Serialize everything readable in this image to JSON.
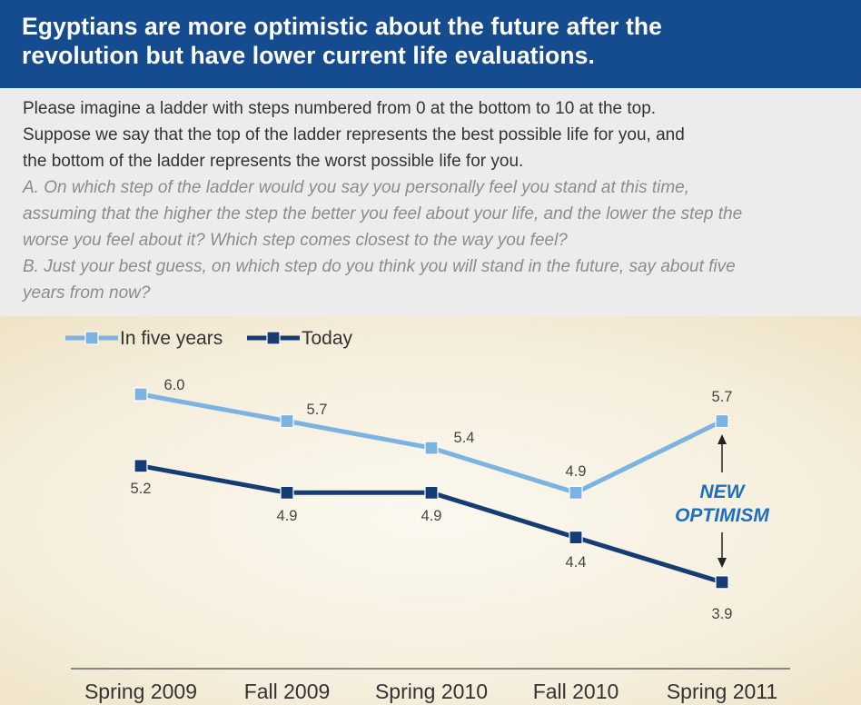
{
  "header": {
    "title_line1": "Egyptians are more optimistic about the future after the",
    "title_line2": "revolution but have lower current life evaluations."
  },
  "question": {
    "intro": [
      "Please imagine a ladder with steps numbered from 0 at the bottom to 10 at the top.",
      "Suppose we say that the top of the ladder represents the best possible life for you, and",
      "the bottom of the ladder represents the worst possible life for you."
    ],
    "part_a": [
      "A. On which step of the ladder would you say you personally feel you stand at this time,",
      "assuming that the higher the step the better you feel about your life, and the lower the step the",
      "worse you feel about it? Which step comes closest to the way you feel?"
    ],
    "part_b": [
      "B. Just your best guess, on which step do you think you will stand in the future, say about five",
      "years from now?"
    ]
  },
  "chart_data": {
    "type": "line",
    "categories": [
      "Spring 2009",
      "Fall 2009",
      "Spring 2010",
      "Fall 2010",
      "Spring 2011"
    ],
    "series": [
      {
        "name": "In five years",
        "values": [
          6.0,
          5.7,
          5.4,
          4.9,
          5.7
        ],
        "labels": [
          "6.0",
          "5.7",
          "5.4",
          "4.9",
          "5.7"
        ],
        "color": "#7db3e0"
      },
      {
        "name": "Today",
        "values": [
          5.2,
          4.9,
          4.9,
          4.4,
          3.9
        ],
        "labels": [
          "5.2",
          "4.9",
          "4.9",
          "4.4",
          "3.9"
        ],
        "color": "#163d73"
      }
    ],
    "legend_position": "top-left",
    "annotation": {
      "line1": "NEW",
      "line2": "OPTIMISM",
      "color": "#1f6fbd"
    },
    "grid": false
  }
}
